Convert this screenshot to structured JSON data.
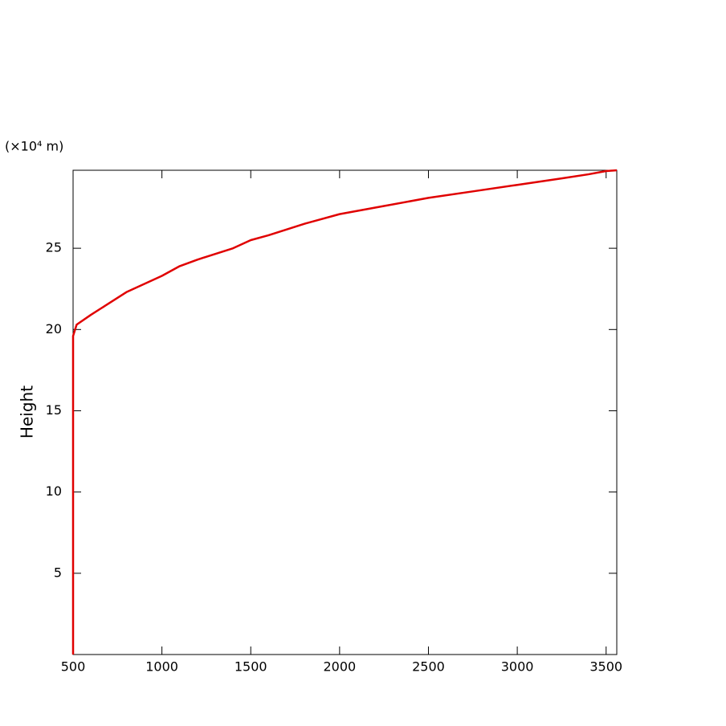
{
  "chart_data": {
    "type": "line",
    "unit_label": "(×10⁴ m)",
    "ylabel": "Height",
    "x": [
      500,
      500,
      500,
      520,
      600,
      700,
      800,
      900,
      1000,
      1100,
      1200,
      1400,
      1500,
      1600,
      1800,
      2000,
      2250,
      2500,
      2750,
      3000,
      3250,
      3400,
      3500,
      3560
    ],
    "series": [
      {
        "color": "#e00000",
        "values": [
          0,
          10,
          19.6,
          20.3,
          20.9,
          21.6,
          22.3,
          22.8,
          23.3,
          23.9,
          24.3,
          25.0,
          25.5,
          25.8,
          26.5,
          27.1,
          27.6,
          28.1,
          28.5,
          28.9,
          29.3,
          29.55,
          29.75,
          29.8
        ]
      }
    ],
    "xlim": [
      500,
      3560
    ],
    "ylim": [
      0,
      29.8
    ],
    "xticks": [
      500,
      1000,
      1500,
      2000,
      2500,
      3000,
      3500
    ],
    "yticks": [
      5,
      10,
      15,
      20,
      25
    ]
  }
}
